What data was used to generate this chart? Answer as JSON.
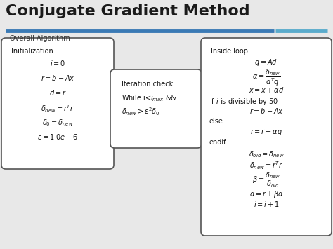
{
  "title": "Conjugate Gradient Method",
  "subtitle": "Overall Algorithm",
  "bg_color": "#e8e8e8",
  "title_color": "#1a1a1a",
  "box_bg": "#ffffff",
  "box_border": "#555555",
  "line_color1": "#3a7ab5",
  "line_color2": "#5aabcc",
  "box1_lines": [
    "Initialization",
    "$i = 0$",
    "$r = b - Ax$",
    "$d = r$",
    "$\\delta_{new} = r^T r$",
    "$\\delta_0 = \\delta_{new}$",
    "$\\epsilon = 1.0e - 6$"
  ],
  "box2_lines": [
    "Iteration check",
    "While i<$i_{max}$ &&",
    "$\\delta_{new} > \\epsilon^2 \\delta_0$"
  ],
  "box3_lines": [
    "Inside loop",
    "$q = Ad$",
    "$\\alpha = \\dfrac{\\delta_{new}}{d^T q}$",
    "$x = x + \\alpha d$",
    "If $i$ is divisible by 50",
    "$r = b - Ax$",
    "else",
    "$r = r - \\alpha q$",
    "endif",
    "$\\delta_{old} = \\delta_{new}$",
    "$\\delta_{new} = r^T r$",
    "$\\beta = \\dfrac{\\delta_{new}}{\\delta_{old}}$",
    "$d = r + \\beta d$",
    "$i = i + 1$"
  ],
  "title_fontsize": 16,
  "subtitle_fontsize": 7,
  "content_fontsize": 7,
  "fig_width": 4.74,
  "fig_height": 3.55,
  "dpi": 100
}
